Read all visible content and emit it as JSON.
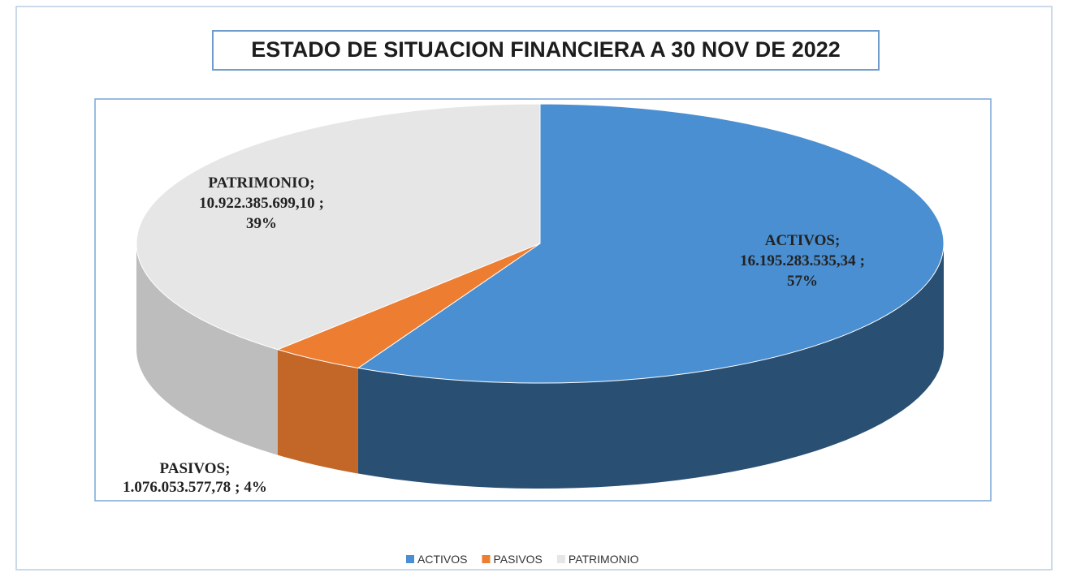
{
  "chart_data": {
    "type": "pie3d",
    "title": "ESTADO DE SITUACION FINANCIERA A 30 NOV  DE 2022",
    "categories": [
      "ACTIVOS",
      "PASIVOS",
      "PATRIMONIO"
    ],
    "values": [
      16195283535.34,
      1076053577.78,
      10922385699.1
    ],
    "value_labels": [
      "16.195.283.535,34",
      "1.076.053.577,78",
      "10.922.385.699,10"
    ],
    "percent_labels": [
      "57%",
      "4%",
      "39%"
    ],
    "label_separator": ";",
    "colors": [
      "#4a8fd1",
      "#ed7d31",
      "#e6e6e6"
    ],
    "legend": "bottom"
  }
}
